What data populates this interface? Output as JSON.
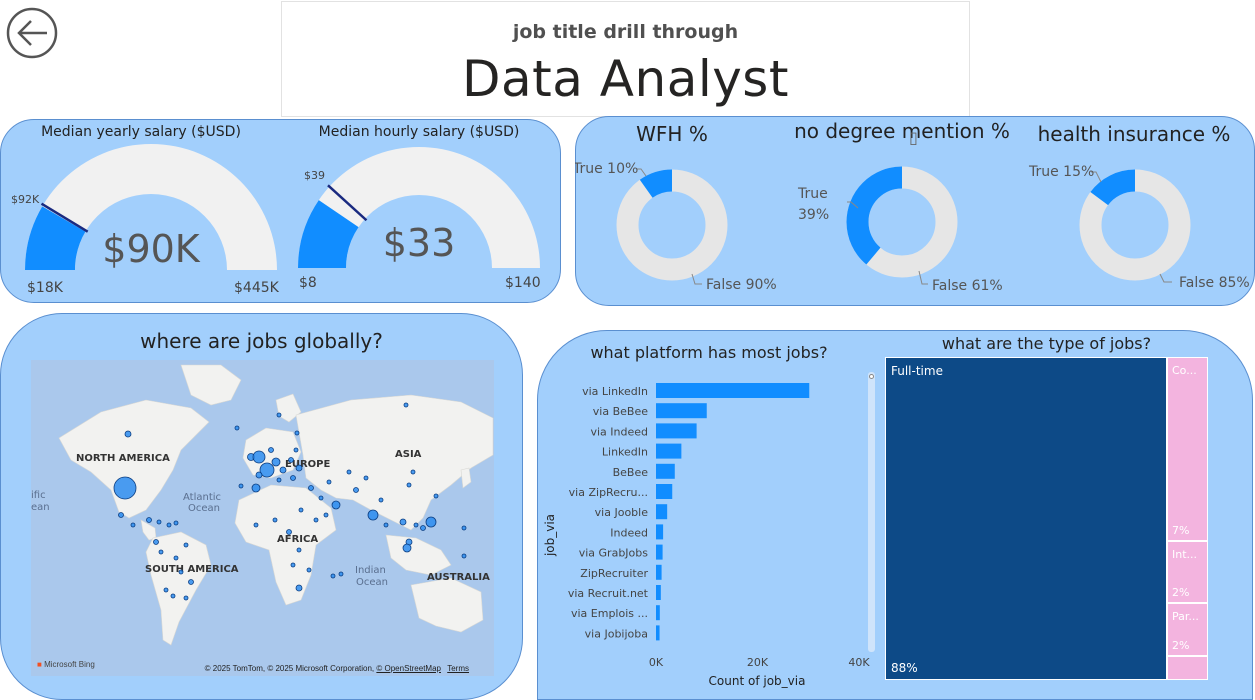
{
  "header": {
    "subtitle": "job title drill through",
    "title": "Data Analyst"
  },
  "gauges": [
    {
      "title": "Median yearly salary ($USD)",
      "value_label": "$90K",
      "min_label": "$18K",
      "max_label": "$445K",
      "target_label": "$92K",
      "min": 18000,
      "max": 445000,
      "value": 90000,
      "target": 92000
    },
    {
      "title": "Median hourly salary ($USD)",
      "value_label": "$33",
      "min_label": "$8",
      "max_label": "$140",
      "target_label": "$39",
      "min": 8,
      "max": 140,
      "value": 33,
      "target": 39
    }
  ],
  "donuts": [
    {
      "title": "WFH %",
      "true_label": "True 10%",
      "false_label": "False 90%",
      "true_pct": 10
    },
    {
      "title": "no degree mention %",
      "true_label_1": "True",
      "true_label_2": "39%",
      "false_label": "False 61%",
      "true_pct": 39
    },
    {
      "title": "health insurance %",
      "true_label": "True 15%",
      "false_label": "False 85%",
      "true_pct": 15
    }
  ],
  "map": {
    "title": "where are jobs globally?",
    "labels": {
      "north_america": "NORTH AMERICA",
      "south_america": "SOUTH AMERICA",
      "europe": "EUROPE",
      "asia": "ASIA",
      "africa": "AFRICA",
      "australia": "AUSTRALIA",
      "atlantic_1": "Atlantic",
      "atlantic_2": "Ocean",
      "indian_1": "Indian",
      "indian_2": "Ocean",
      "pacific_1": "ific",
      "pacific_2": "ean"
    },
    "bing_label": "Microsoft Bing",
    "attribution": "© 2025 TomTom, © 2025 Microsoft Corporation,",
    "osm_link": "© OpenStreetMap",
    "terms_link": "Terms"
  },
  "bar_chart_title": "what platform has most jobs?",
  "treemap": {
    "title": "what are the type of jobs?",
    "tiles": [
      {
        "label": "Full-time",
        "pct_label": "88%",
        "color": "#0d4a87"
      },
      {
        "label": "Co...",
        "pct_label": "7%",
        "color": "#f3b4df"
      },
      {
        "label": "Int...",
        "pct_label": "2%",
        "color": "#f3b4df"
      },
      {
        "label": "Par...",
        "pct_label": "2%",
        "color": "#f3b4df"
      },
      {
        "label": "",
        "pct_label": "",
        "color": "#f3b4df"
      }
    ]
  },
  "colors": {
    "panel": "#a2cffc",
    "accent": "#118dff",
    "gauge_track": "#f1f1f1",
    "target_line": "#1a2a80",
    "donut_track": "#e6e6e6",
    "treemap_main": "#0d4a87",
    "treemap_other": "#f3b4df"
  },
  "chart_data": {
    "type": "bar",
    "orientation": "horizontal",
    "title": "what platform has most jobs?",
    "xlabel": "Count of job_via",
    "ylabel": "job_via",
    "xlim": [
      0,
      40000
    ],
    "x_ticks": [
      "0K",
      "20K",
      "40K"
    ],
    "categories": [
      "via LinkedIn",
      "via BeBee",
      "via Indeed",
      "LinkedIn",
      "BeBee",
      "via ZipRecru...",
      "via Jooble",
      "Indeed",
      "via GrabJobs",
      "ZipRecruiter",
      "via Recruit.net",
      "via Emplois ...",
      "via Jobijoba"
    ],
    "values": [
      30200,
      10000,
      8000,
      5000,
      3700,
      3200,
      2200,
      1400,
      1300,
      1100,
      950,
      750,
      700
    ],
    "color": "#118dff"
  }
}
